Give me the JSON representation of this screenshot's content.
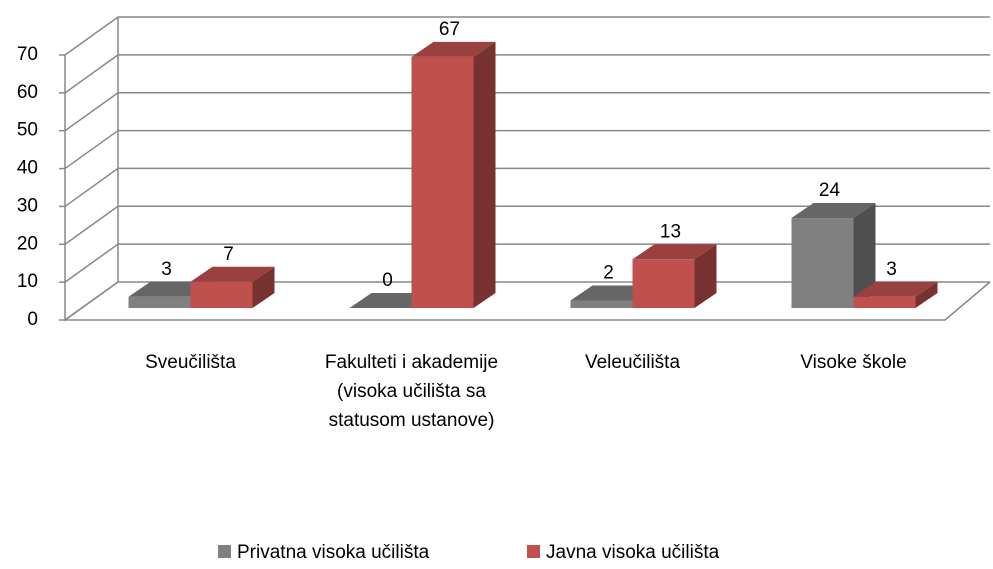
{
  "chart_data": {
    "type": "bar3d",
    "categories": [
      "Sveučilišta",
      "Fakulteti i akademije (visoka učilišta sa statusom ustanove)",
      "Veleučilišta",
      "Visoke škole"
    ],
    "series": [
      {
        "name": "Privatna visoka učilišta",
        "color": "#808080",
        "values": [
          3,
          0,
          2,
          24
        ]
      },
      {
        "name": "Javna visoka učilišta",
        "color": "#c0504d",
        "values": [
          7,
          67,
          13,
          3
        ]
      }
    ],
    "ylim": [
      0,
      70
    ],
    "yticks": [
      0,
      10,
      20,
      30,
      40,
      50,
      60,
      70
    ],
    "grid": true,
    "legend": "bottom"
  }
}
